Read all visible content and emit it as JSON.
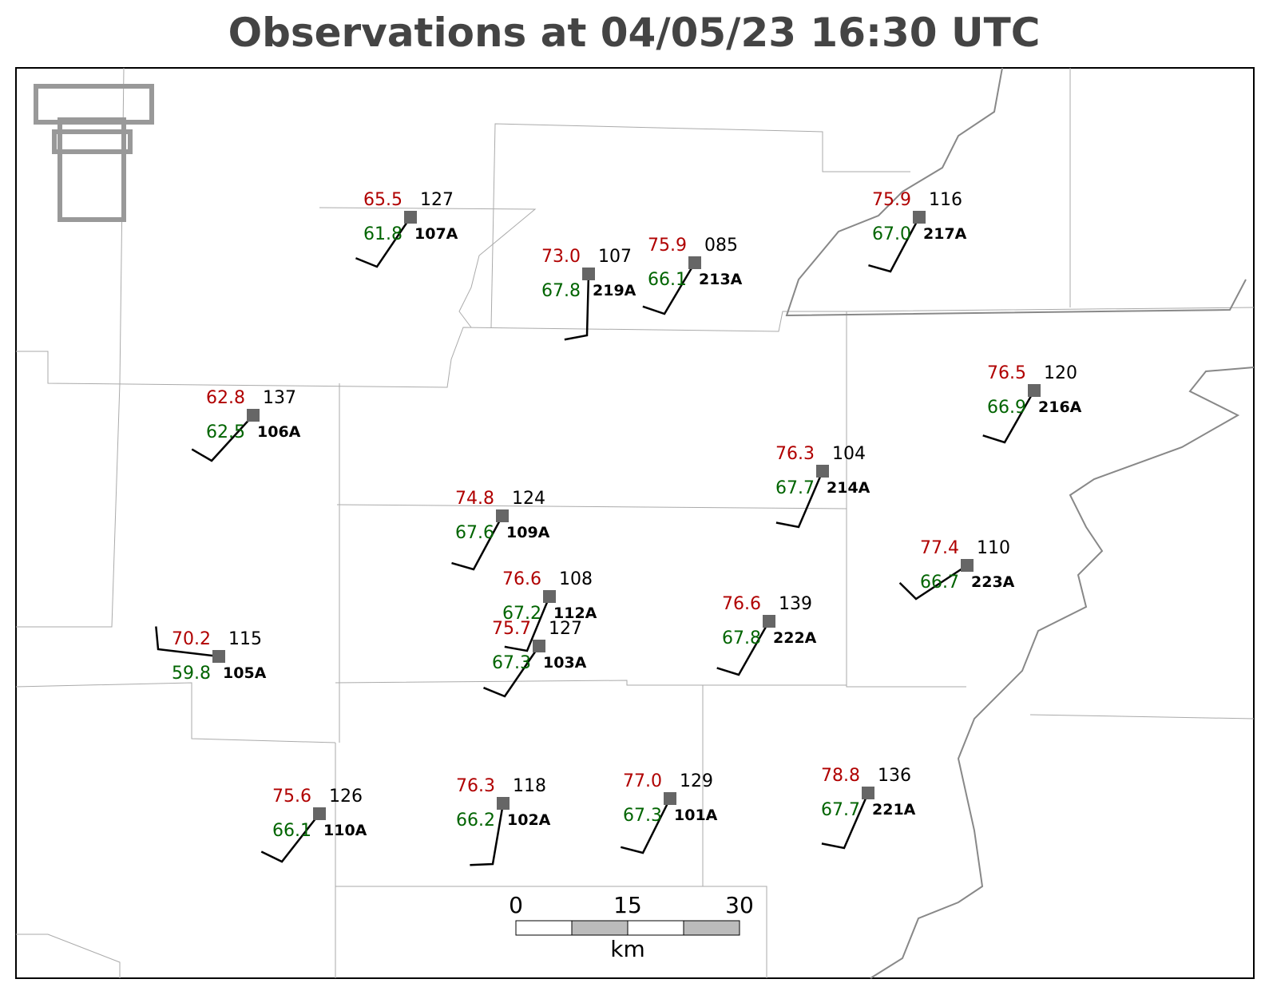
{
  "title": "Observations at 04/05/23 16:30 UTC",
  "stations": [
    {
      "temperature": "65.5",
      "dewpoint": "61.8",
      "pressure": "127",
      "id": "107A"
    },
    {
      "temperature": "73.0",
      "dewpoint": "67.8",
      "pressure": "107",
      "id": "219A"
    },
    {
      "temperature": "75.9",
      "dewpoint": "66.1",
      "pressure": "085",
      "id": "213A"
    },
    {
      "temperature": "75.9",
      "dewpoint": "67.0",
      "pressure": "116",
      "id": "217A"
    },
    {
      "temperature": "62.8",
      "dewpoint": "62.5",
      "pressure": "137",
      "id": "106A"
    },
    {
      "temperature": "76.5",
      "dewpoint": "66.9",
      "pressure": "120",
      "id": "216A"
    },
    {
      "temperature": "76.3",
      "dewpoint": "67.7",
      "pressure": "104",
      "id": "214A"
    },
    {
      "temperature": "74.8",
      "dewpoint": "67.6",
      "pressure": "124",
      "id": "109A"
    },
    {
      "temperature": "77.4",
      "dewpoint": "66.7",
      "pressure": "110",
      "id": "223A"
    },
    {
      "temperature": "76.6",
      "dewpoint": "67.2",
      "pressure": "108",
      "id": "112A"
    },
    {
      "temperature": "75.7",
      "dewpoint": "67.3",
      "pressure": "127",
      "id": "103A"
    },
    {
      "temperature": "76.6",
      "dewpoint": "67.8",
      "pressure": "139",
      "id": "222A"
    },
    {
      "temperature": "70.2",
      "dewpoint": "59.8",
      "pressure": "115",
      "id": "105A"
    },
    {
      "temperature": "75.6",
      "dewpoint": "66.1",
      "pressure": "126",
      "id": "110A"
    },
    {
      "temperature": "76.3",
      "dewpoint": "66.2",
      "pressure": "118",
      "id": "102A"
    },
    {
      "temperature": "77.0",
      "dewpoint": "67.3",
      "pressure": "129",
      "id": "101A"
    },
    {
      "temperature": "78.8",
      "dewpoint": "67.7",
      "pressure": "136",
      "id": "221A"
    }
  ],
  "scale_bar": {
    "labels": [
      "0",
      "15",
      "30"
    ],
    "unit": "km"
  }
}
